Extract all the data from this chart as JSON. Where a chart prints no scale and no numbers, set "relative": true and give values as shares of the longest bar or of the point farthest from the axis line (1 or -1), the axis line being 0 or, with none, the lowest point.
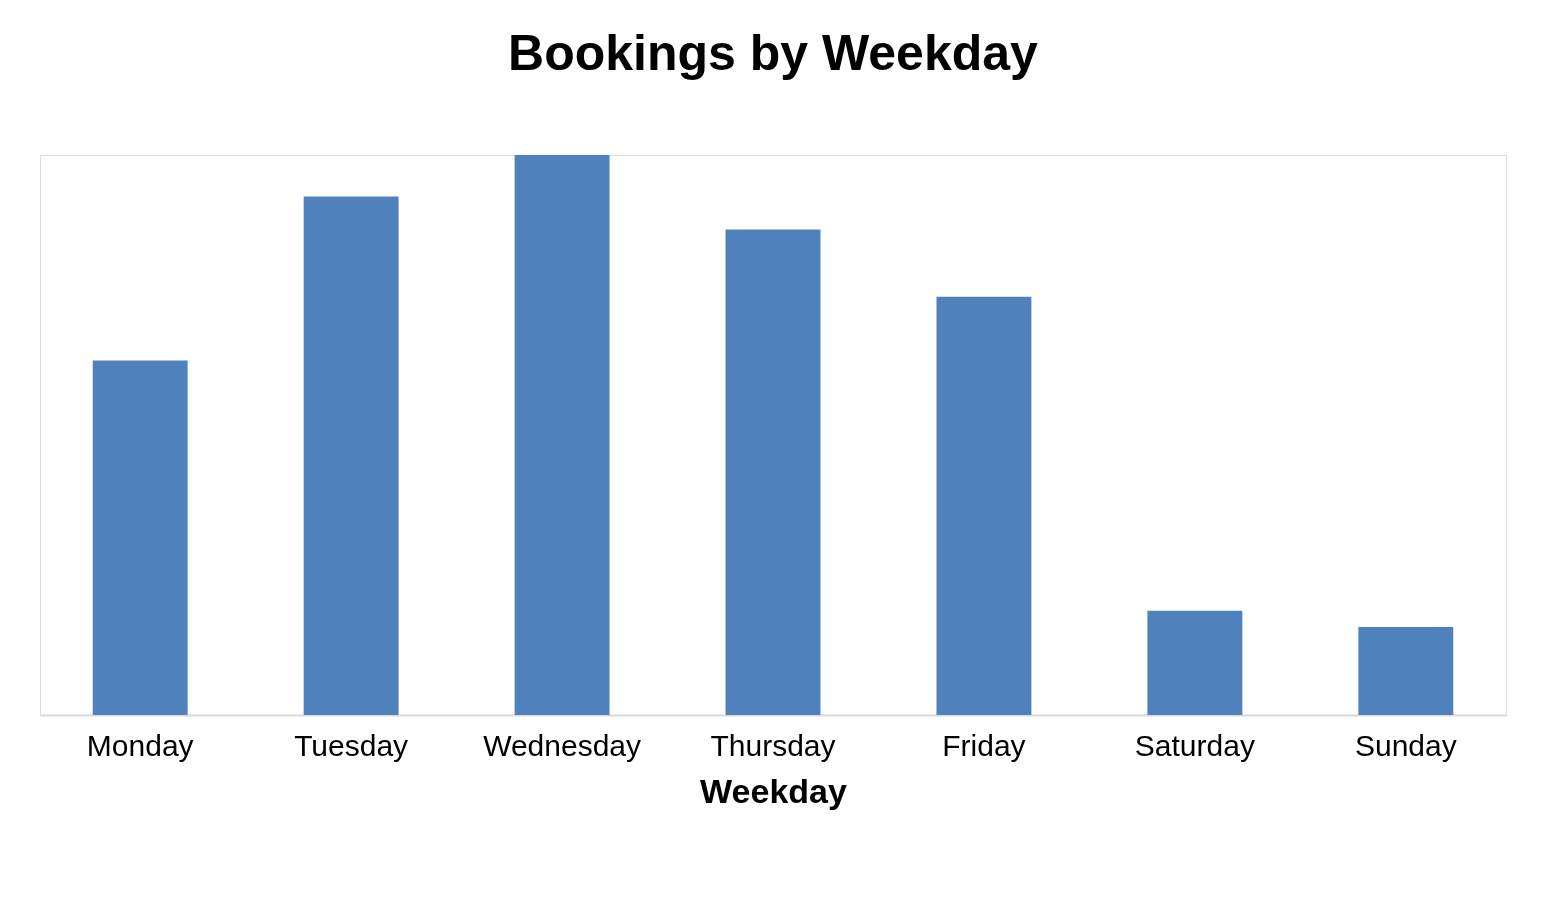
{
  "chart_data": {
    "type": "bar",
    "title": "Bookings by Weekday",
    "xlabel": "Weekday",
    "categories": [
      "Monday",
      "Tuesday",
      "Wednesday",
      "Thursday",
      "Friday",
      "Saturday",
      "Sunday"
    ],
    "values": [
      0.633,
      0.926,
      1,
      0.867,
      0.747,
      0.186,
      0.157
    ],
    "color": "#4f81bd",
    "relative": true
  }
}
